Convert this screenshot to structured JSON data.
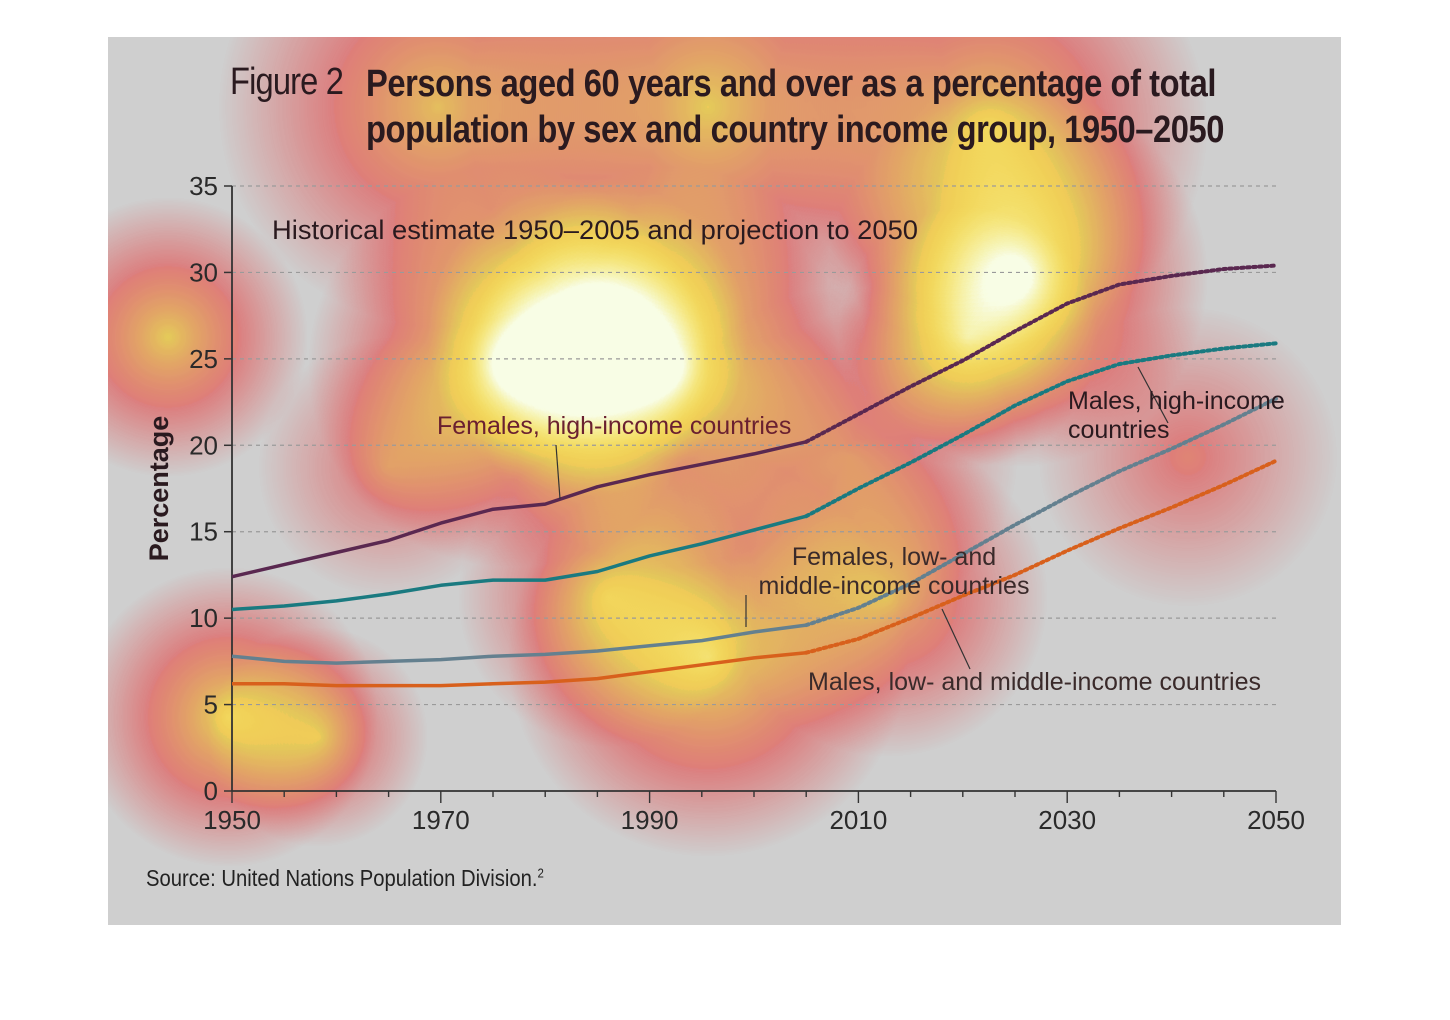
{
  "figure_label": "Figure 2",
  "figure_title": "Persons aged 60 years and over as a percentage of total population by sex and country income group, 1950–2050",
  "source": "Source: United Nations Population Division.",
  "source_sup": "2",
  "colors": {
    "panel_bg": "#cfcfcf",
    "females_high": "#5a2850",
    "males_high": "#1a7a80",
    "females_low_mid": "#64808f",
    "males_low_mid": "#d8601c",
    "grid": "#9a9a9a"
  },
  "chart_data": {
    "type": "line",
    "subtitle": "Historical estimate 1950–2005 and projection to 2050",
    "ylabel": "Percentage",
    "xlabel": "",
    "xlim": [
      1950,
      2050
    ],
    "ylim": [
      0,
      35
    ],
    "x_ticks": [
      1950,
      1970,
      1990,
      2010,
      2030,
      2050
    ],
    "y_ticks": [
      0,
      5,
      10,
      15,
      20,
      25,
      30,
      35
    ],
    "grid": "horizontal dashed",
    "historical_end": 2005,
    "series": [
      {
        "name": "Females, high-income countries",
        "color": "#5a2850",
        "x": [
          1950,
          1955,
          1960,
          1965,
          1970,
          1975,
          1980,
          1985,
          1990,
          1995,
          2000,
          2005,
          2010,
          2015,
          2020,
          2025,
          2030,
          2035,
          2040,
          2045,
          2050
        ],
        "y": [
          12.4,
          13.1,
          13.8,
          14.5,
          15.5,
          16.3,
          16.6,
          17.6,
          18.3,
          18.9,
          19.5,
          20.2,
          21.8,
          23.4,
          24.9,
          26.6,
          28.2,
          29.3,
          29.8,
          30.2,
          30.4
        ]
      },
      {
        "name": "Males, high-income countries",
        "color": "#1a7a80",
        "x": [
          1950,
          1955,
          1960,
          1965,
          1970,
          1975,
          1980,
          1985,
          1990,
          1995,
          2000,
          2005,
          2010,
          2015,
          2020,
          2025,
          2030,
          2035,
          2040,
          2045,
          2050
        ],
        "y": [
          10.5,
          10.7,
          11.0,
          11.4,
          11.9,
          12.2,
          12.2,
          12.7,
          13.6,
          14.3,
          15.1,
          15.9,
          17.5,
          19.0,
          20.6,
          22.3,
          23.7,
          24.7,
          25.2,
          25.6,
          25.9
        ]
      },
      {
        "name": "Females, low- and middle-income countries",
        "color": "#64808f",
        "x": [
          1950,
          1955,
          1960,
          1965,
          1970,
          1975,
          1980,
          1985,
          1990,
          1995,
          2000,
          2005,
          2010,
          2015,
          2020,
          2025,
          2030,
          2035,
          2040,
          2045,
          2050
        ],
        "y": [
          7.8,
          7.5,
          7.4,
          7.5,
          7.6,
          7.8,
          7.9,
          8.1,
          8.4,
          8.7,
          9.2,
          9.6,
          10.6,
          12.0,
          13.7,
          15.4,
          17.0,
          18.5,
          19.8,
          21.2,
          22.7
        ]
      },
      {
        "name": "Males, low- and middle-income countries",
        "color": "#d8601c",
        "x": [
          1950,
          1955,
          1960,
          1965,
          1970,
          1975,
          1980,
          1985,
          1990,
          1995,
          2000,
          2005,
          2010,
          2015,
          2020,
          2025,
          2030,
          2035,
          2040,
          2045,
          2050
        ],
        "y": [
          6.2,
          6.2,
          6.1,
          6.1,
          6.1,
          6.2,
          6.3,
          6.5,
          6.9,
          7.3,
          7.7,
          8.0,
          8.8,
          10.0,
          11.3,
          12.5,
          13.9,
          15.2,
          16.4,
          17.7,
          19.1
        ]
      }
    ],
    "annotations": [
      {
        "text": [
          "Females, high-income countries"
        ],
        "series": 0
      },
      {
        "text": [
          "Males, high-income",
          "countries"
        ],
        "series": 1
      },
      {
        "text": [
          "Females, low- and",
          "middle-income countries"
        ],
        "series": 2
      },
      {
        "text": [
          "Males, low- and middle-income countries"
        ],
        "series": 3
      }
    ]
  }
}
